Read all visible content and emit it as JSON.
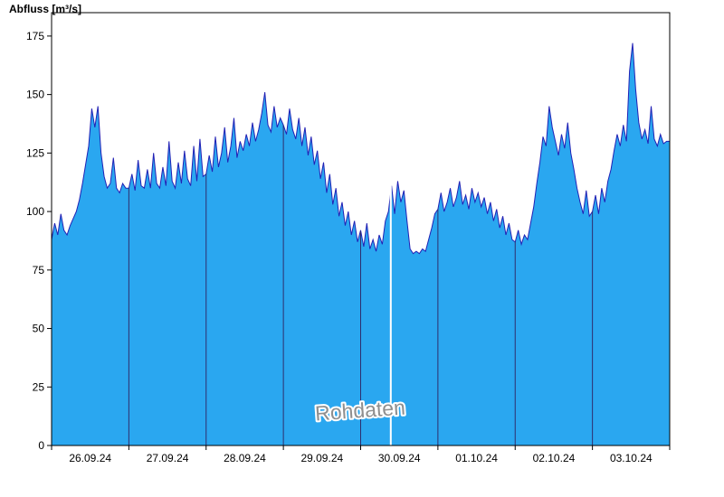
{
  "chart_data": {
    "type": "area",
    "title": "Abfluss [m³/s]",
    "watermark": "Rohdaten",
    "xlabel": "",
    "ylabel": "Abfluss [m³/s]",
    "x_tick_labels": [
      "26.09.24",
      "27.09.24",
      "28.09.24",
      "29.09.24",
      "30.09.24",
      "01.10.24",
      "02.10.24",
      "03.10.24"
    ],
    "x_domain_days": 8,
    "ylim": [
      0,
      185
    ],
    "y_ticks": [
      0,
      25,
      50,
      75,
      100,
      125,
      150,
      175
    ],
    "grid": "vertical-day-lines-only",
    "legend": "none",
    "marker_line_t": 4.39,
    "series": [
      {
        "name": "Abfluss",
        "unit": "m3/s",
        "t0": 0,
        "dt": 0.04,
        "values": [
          88,
          95,
          90,
          99,
          92,
          90,
          94,
          97,
          100,
          105,
          112,
          120,
          128,
          144,
          136,
          145,
          125,
          115,
          110,
          112,
          123,
          110,
          108,
          112,
          110,
          110,
          116,
          109,
          122,
          111,
          110,
          118,
          110,
          125,
          112,
          110,
          119,
          111,
          130,
          113,
          110,
          121,
          112,
          126,
          114,
          111,
          128,
          113,
          131,
          115,
          116,
          124,
          117,
          132,
          119,
          125,
          136,
          121,
          128,
          140,
          123,
          130,
          126,
          133,
          128,
          138,
          130,
          135,
          142,
          151,
          137,
          134,
          145,
          136,
          140,
          137,
          133,
          144,
          135,
          131,
          140,
          128,
          136,
          124,
          132,
          120,
          126,
          114,
          121,
          108,
          116,
          103,
          110,
          98,
          104,
          94,
          100,
          90,
          96,
          87,
          92,
          85,
          95,
          84,
          88,
          83,
          90,
          86,
          96,
          100,
          111,
          99,
          113,
          104,
          109,
          96,
          84,
          82,
          83,
          82,
          84,
          83,
          88,
          93,
          99,
          101,
          108,
          100,
          104,
          110,
          102,
          106,
          113,
          103,
          107,
          101,
          110,
          104,
          108,
          102,
          106,
          99,
          104,
          96,
          101,
          93,
          98,
          90,
          95,
          88,
          87,
          92,
          86,
          90,
          88,
          95,
          102,
          112,
          121,
          132,
          128,
          145,
          136,
          130,
          124,
          133,
          127,
          138,
          125,
          118,
          110,
          104,
          99,
          109,
          98,
          100,
          107,
          99,
          110,
          104,
          113,
          118,
          126,
          133,
          128,
          137,
          130,
          160,
          172,
          152,
          138,
          131,
          135,
          129,
          145,
          131,
          128,
          133,
          129,
          130,
          130
        ]
      }
    ],
    "colors": {
      "fill": "#2AA7F0",
      "line": "#2121B5",
      "grid": "#2E2E6E",
      "marker": "#FFFFFF",
      "axis": "#000000",
      "tick_text": "#000000",
      "watermark": "#8F8F8F",
      "watermark_halo": "#FFFFFF",
      "background": "#FFFFFF"
    }
  }
}
